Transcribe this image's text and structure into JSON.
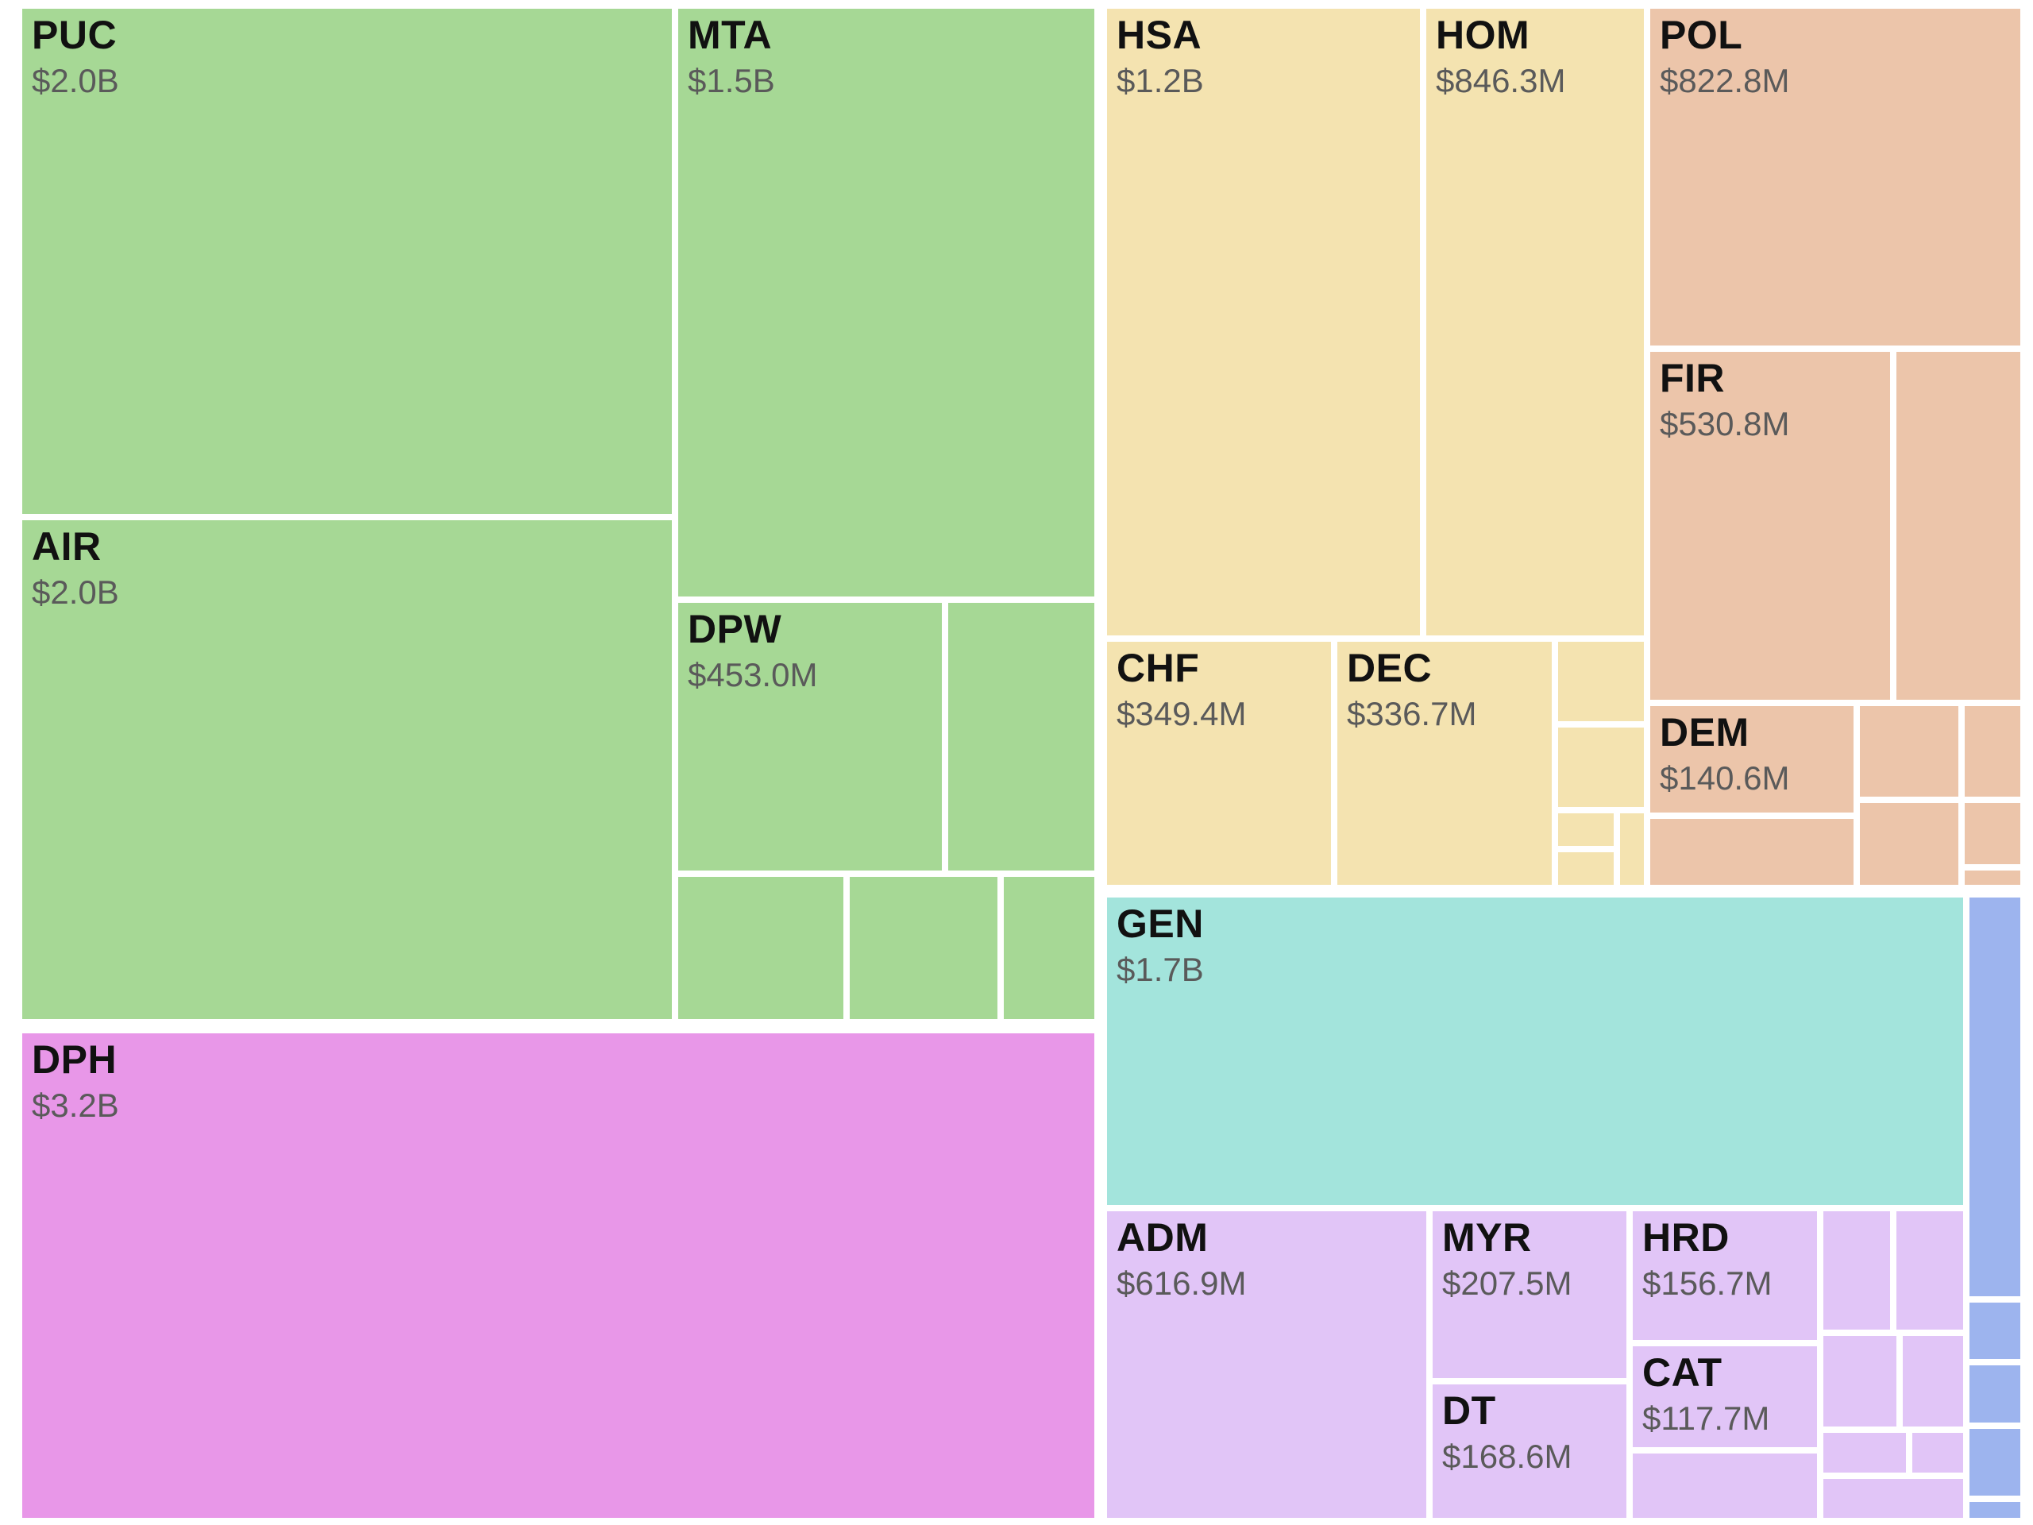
{
  "chart_data": {
    "type": "treemap",
    "title": "",
    "groups": [
      {
        "color": "#a6d895",
        "cells": [
          {
            "label": "PUC",
            "value_text": "$2.0B",
            "value": 2000
          },
          {
            "label": "AIR",
            "value_text": "$2.0B",
            "value": 2000
          },
          {
            "label": "MTA",
            "value_text": "$1.5B",
            "value": 1500
          },
          {
            "label": "DPW",
            "value_text": "$453.0M",
            "value": 453.0
          },
          {
            "label": "",
            "value_text": "",
            "value": 250
          },
          {
            "label": "",
            "value_text": "",
            "value": 150
          },
          {
            "label": "",
            "value_text": "",
            "value": 135
          },
          {
            "label": "",
            "value_text": "",
            "value": 80
          }
        ]
      },
      {
        "color": "#e897e8",
        "cells": [
          {
            "label": "DPH",
            "value_text": "$3.2B",
            "value": 3200
          }
        ]
      },
      {
        "color": "#f4e3b0",
        "cells": [
          {
            "label": "HSA",
            "value_text": "$1.2B",
            "value": 1200
          },
          {
            "label": "HOM",
            "value_text": "$846.3M",
            "value": 846.3
          },
          {
            "label": "CHF",
            "value_text": "$349.4M",
            "value": 349.4
          },
          {
            "label": "DEC",
            "value_text": "$336.7M",
            "value": 336.7
          },
          {
            "label": "",
            "value_text": "",
            "value": 50
          },
          {
            "label": "",
            "value_text": "",
            "value": 50
          },
          {
            "label": "",
            "value_text": "",
            "value": 20
          },
          {
            "label": "",
            "value_text": "",
            "value": 20
          },
          {
            "label": "",
            "value_text": "",
            "value": 15
          }
        ]
      },
      {
        "color": "#ecc5aa",
        "cells": [
          {
            "label": "POL",
            "value_text": "$822.8M",
            "value": 822.8
          },
          {
            "label": "FIR",
            "value_text": "$530.8M",
            "value": 530.8
          },
          {
            "label": "",
            "value_text": "",
            "value": 300
          },
          {
            "label": "DEM",
            "value_text": "$140.6M",
            "value": 140.6
          },
          {
            "label": "",
            "value_text": "",
            "value": 80
          },
          {
            "label": "",
            "value_text": "",
            "value": 40
          },
          {
            "label": "",
            "value_text": "",
            "value": 85
          },
          {
            "label": "",
            "value_text": "",
            "value": 40
          },
          {
            "label": "",
            "value_text": "",
            "value": 25
          },
          {
            "label": "",
            "value_text": "",
            "value": 10
          }
        ]
      },
      {
        "color": "#a3e4dc",
        "cells": [
          {
            "label": "GEN",
            "value_text": "$1.7B",
            "value": 1700
          }
        ]
      },
      {
        "color": "#e1c5f7",
        "cells": [
          {
            "label": "ADM",
            "value_text": "$616.9M",
            "value": 616.9
          },
          {
            "label": "MYR",
            "value_text": "$207.5M",
            "value": 207.5
          },
          {
            "label": "DT",
            "value_text": "$168.6M",
            "value": 168.6
          },
          {
            "label": "HRD",
            "value_text": "$156.7M",
            "value": 156.7
          },
          {
            "label": "CAT",
            "value_text": "$117.7M",
            "value": 117.7
          },
          {
            "label": "",
            "value_text": "",
            "value": 60
          },
          {
            "label": "",
            "value_text": "",
            "value": 50
          },
          {
            "label": "",
            "value_text": "",
            "value": 50
          },
          {
            "label": "",
            "value_text": "",
            "value": 45
          },
          {
            "label": "",
            "value_text": "",
            "value": 30
          },
          {
            "label": "",
            "value_text": "",
            "value": 20
          },
          {
            "label": "",
            "value_text": "",
            "value": 30
          },
          {
            "label": "",
            "value_text": "",
            "value": 15
          }
        ]
      },
      {
        "color": "#9db4ee",
        "cells": [
          {
            "label": "",
            "value_text": "",
            "value": 200
          },
          {
            "label": "",
            "value_text": "",
            "value": 30
          },
          {
            "label": "",
            "value_text": "",
            "value": 30
          },
          {
            "label": "",
            "value_text": "",
            "value": 30
          },
          {
            "label": "",
            "value_text": "",
            "value": 20
          }
        ]
      }
    ]
  }
}
